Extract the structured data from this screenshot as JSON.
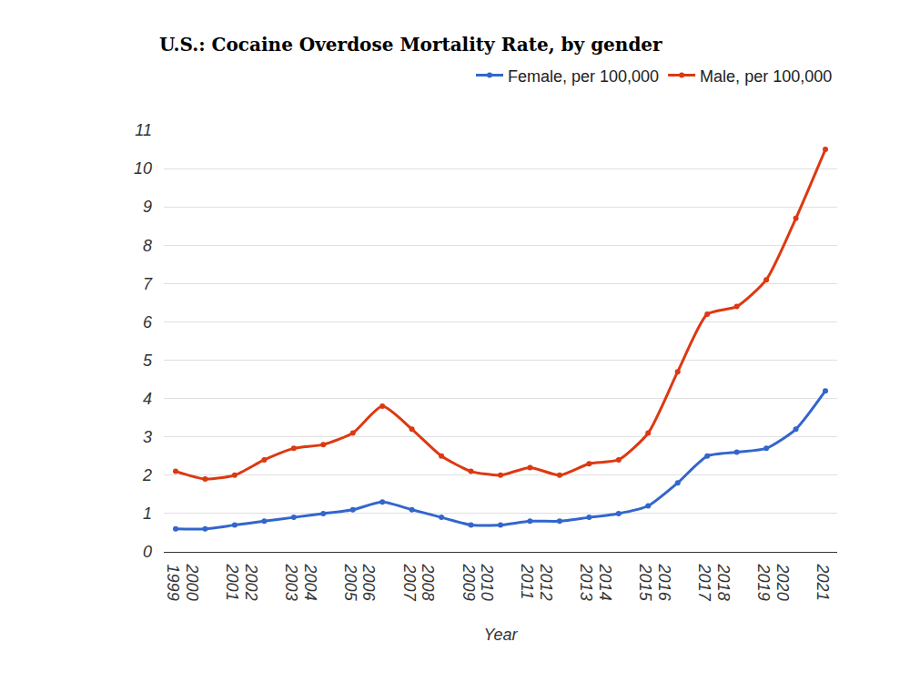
{
  "chart_data": {
    "type": "line",
    "title": "U.S.: Cocaine Overdose Mortality Rate, by gender",
    "x_label": "Year",
    "x": [
      1999,
      2000,
      2001,
      2002,
      2003,
      2004,
      2005,
      2006,
      2007,
      2008,
      2009,
      2010,
      2011,
      2012,
      2013,
      2014,
      2015,
      2016,
      2017,
      2018,
      2019,
      2020,
      2021
    ],
    "series": [
      {
        "name": "Female, per 100,000",
        "color": "#3366cc",
        "marker": "circle",
        "values": [
          0.6,
          0.6,
          0.7,
          0.8,
          0.9,
          1.0,
          1.1,
          1.3,
          1.1,
          0.9,
          0.7,
          0.7,
          0.8,
          0.8,
          0.9,
          1.0,
          1.2,
          1.8,
          2.5,
          2.6,
          2.7,
          3.2,
          4.2
        ]
      },
      {
        "name": "Male, per 100,000",
        "color": "#dc3912",
        "marker": "circle",
        "values": [
          2.1,
          1.9,
          2.0,
          2.4,
          2.7,
          2.8,
          3.1,
          3.8,
          3.2,
          2.5,
          2.1,
          2.0,
          2.2,
          2.0,
          2.3,
          2.4,
          3.1,
          4.7,
          6.2,
          6.4,
          7.1,
          8.7,
          10.5
        ]
      }
    ],
    "xlim": [
      1998.6,
      2021.4
    ],
    "xticks": [
      1999,
      2000,
      2001,
      2002,
      2003,
      2004,
      2005,
      2006,
      2007,
      2008,
      2009,
      2010,
      2011,
      2012,
      2013,
      2014,
      2015,
      2016,
      2017,
      2018,
      2019,
      2020,
      2021
    ],
    "ylim": [
      0,
      11
    ],
    "yticks": [
      0,
      1,
      2,
      3,
      4,
      5,
      6,
      7,
      8,
      9,
      10,
      11
    ],
    "grid": true,
    "legend": "top right"
  }
}
